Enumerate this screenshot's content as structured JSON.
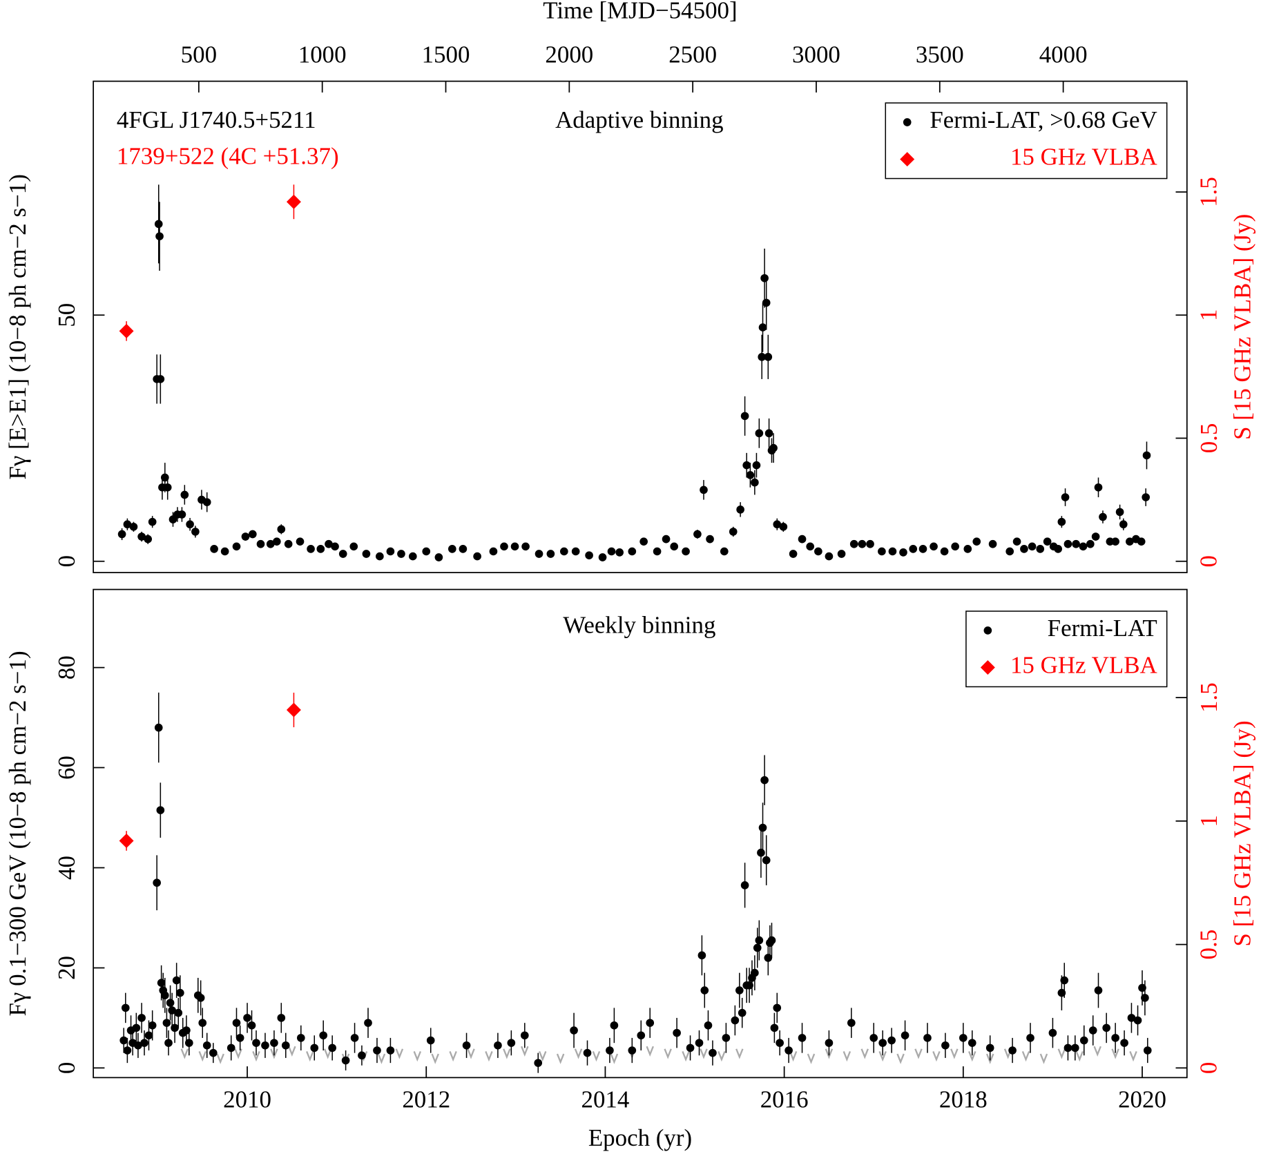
{
  "chart_data": [
    {
      "type": "scatter",
      "annotations": [
        {
          "text": "4FGL J1740.5+5211",
          "color": "#000000"
        },
        {
          "text": "1739+522 (4C +51.37)",
          "color": "#ff0000"
        },
        {
          "text": "Adaptive binning",
          "color": "#000000"
        }
      ],
      "x2_label": "Time [MJD−54500]",
      "y_label": "Fγ [E>E1] (10−8 ph cm−2 s−1)",
      "y2_label": "S [15 GHz VLBA] (Jy)",
      "xlim": [
        2008.28,
        2020.5
      ],
      "x2lim": [
        73,
        4501
      ],
      "x2ticks": [
        500,
        1000,
        1500,
        2000,
        2500,
        3000,
        3500,
        4000
      ],
      "ylim": [
        -2.3,
        97.5
      ],
      "yticks": [
        0,
        50
      ],
      "y2lim": [
        -0.046,
        1.95
      ],
      "y2ticks": [
        0,
        0.5,
        1,
        1.5
      ],
      "legend": "upper right",
      "series": [
        {
          "name": "Fermi-LAT, >0.68 GeV",
          "color": "#000000",
          "marker": "circle",
          "x": [
            2008.6,
            2008.66,
            2008.73,
            2008.82,
            2008.89,
            2008.94,
            2008.99,
            2009.01,
            2009.02,
            2009.03,
            2009.05,
            2009.08,
            2009.11,
            2009.17,
            2009.22,
            2009.27,
            2009.3,
            2009.36,
            2009.42,
            2009.49,
            2009.55,
            2009.63,
            2009.75,
            2009.88,
            2009.98,
            2010.06,
            2010.15,
            2010.26,
            2010.33,
            2010.38,
            2010.46,
            2010.59,
            2010.71,
            2010.82,
            2010.91,
            2010.98,
            2011.07,
            2011.19,
            2011.33,
            2011.48,
            2011.6,
            2011.72,
            2011.85,
            2012.0,
            2012.14,
            2012.29,
            2012.41,
            2012.57,
            2012.75,
            2012.87,
            2012.99,
            2013.11,
            2013.26,
            2013.39,
            2013.54,
            2013.67,
            2013.82,
            2013.97,
            2014.07,
            2014.16,
            2014.3,
            2014.43,
            2014.58,
            2014.68,
            2014.77,
            2014.9,
            2015.03,
            2015.1,
            2015.17,
            2015.33,
            2015.43,
            2015.51,
            2015.56,
            2015.58,
            2015.62,
            2015.67,
            2015.69,
            2015.72,
            2015.75,
            2015.76,
            2015.78,
            2015.8,
            2015.82,
            2015.83,
            2015.86,
            2015.88,
            2015.92,
            2015.99,
            2016.1,
            2016.2,
            2016.29,
            2016.38,
            2016.5,
            2016.64,
            2016.78,
            2016.87,
            2016.96,
            2017.09,
            2017.21,
            2017.33,
            2017.44,
            2017.55,
            2017.67,
            2017.79,
            2017.91,
            2018.05,
            2018.15,
            2018.33,
            2018.52,
            2018.6,
            2018.68,
            2018.77,
            2018.86,
            2018.94,
            2019.01,
            2019.06,
            2019.1,
            2019.14,
            2019.17,
            2019.26,
            2019.34,
            2019.42,
            2019.48,
            2019.51,
            2019.56,
            2019.64,
            2019.7,
            2019.75,
            2019.79,
            2019.86,
            2019.93,
            2019.99,
            2020.04,
            2020.05
          ],
          "values": [
            5.5,
            7.5,
            7,
            5,
            4.5,
            8,
            37,
            68.5,
            66,
            37,
            15,
            17,
            15,
            8.5,
            9.5,
            9.5,
            13.5,
            7.5,
            6,
            12.5,
            12,
            2.5,
            2,
            3,
            5,
            5.5,
            3.5,
            3.5,
            4,
            6.5,
            3.5,
            4,
            2.5,
            2.5,
            3.5,
            3,
            1.5,
            3,
            1.5,
            1,
            2,
            1.5,
            1,
            2,
            0.8,
            2.5,
            2.5,
            1,
            2,
            3,
            3,
            3,
            1.5,
            1.5,
            2,
            2,
            1.2,
            0.8,
            2,
            1.8,
            2,
            4,
            2,
            4.5,
            3,
            2,
            5.5,
            14.5,
            4.5,
            2,
            6,
            10.5,
            29.5,
            19.5,
            17.5,
            16,
            19.5,
            26,
            41.5,
            47.5,
            57.5,
            52.5,
            41.5,
            26,
            22.5,
            23,
            7.5,
            7,
            1.5,
            4.5,
            3,
            2,
            1,
            1.5,
            3.5,
            3.5,
            3.5,
            2,
            2,
            1.8,
            2.5,
            2.5,
            3,
            2,
            3,
            2.5,
            4,
            3.5,
            2,
            4,
            2.5,
            3,
            2.5,
            4,
            3,
            2.5,
            8,
            13,
            3.5,
            3.5,
            3,
            3.5,
            5,
            15,
            9,
            4,
            4,
            10,
            7.5,
            4,
            4.5,
            4,
            13,
            21.5
          ],
          "errors": [
            1.2,
            1.2,
            1,
            1,
            1,
            1.2,
            5,
            8,
            7,
            5,
            2.5,
            3,
            2.5,
            1.5,
            1.5,
            1.5,
            2,
            1.3,
            1.2,
            2,
            2,
            0.6,
            0.5,
            0.6,
            0.8,
            0.8,
            0.7,
            0.7,
            0.8,
            1,
            0.7,
            0.7,
            0.6,
            0.6,
            0.7,
            0.6,
            0.5,
            0.6,
            0.5,
            0.4,
            0.5,
            0.5,
            0.4,
            0.5,
            0.4,
            0.6,
            0.6,
            0.4,
            0.5,
            0.6,
            0.6,
            0.6,
            0.5,
            0.5,
            0.5,
            0.5,
            0.4,
            0.4,
            0.5,
            0.5,
            0.5,
            0.7,
            0.5,
            0.8,
            0.6,
            0.5,
            0.9,
            2,
            0.8,
            0.6,
            1,
            1.5,
            4,
            2.5,
            2.5,
            2.5,
            2.5,
            3,
            4.5,
            5,
            6,
            5.5,
            4.5,
            3,
            2.5,
            3,
            1.2,
            1,
            0.5,
            0.8,
            0.6,
            0.5,
            0.4,
            0.5,
            0.7,
            0.7,
            0.7,
            0.5,
            0.5,
            0.5,
            0.6,
            0.6,
            0.6,
            0.5,
            0.6,
            0.6,
            0.7,
            0.7,
            0.5,
            0.7,
            0.6,
            0.6,
            0.6,
            0.7,
            0.6,
            0.6,
            1.2,
            1.8,
            0.7,
            0.7,
            0.6,
            0.7,
            0.8,
            2,
            1.3,
            0.7,
            0.7,
            1.5,
            1.2,
            0.7,
            0.8,
            0.7,
            1.8,
            2.8
          ]
        },
        {
          "name": "15 GHz VLBA",
          "color": "#ff0000",
          "marker": "diamond",
          "axis": "y2",
          "x": [
            2008.65,
            2010.52
          ],
          "values": [
            0.935,
            1.46
          ],
          "errors": [
            0.04,
            0.07
          ]
        }
      ]
    },
    {
      "type": "scatter",
      "annotations": [
        {
          "text": "Weekly binning",
          "color": "#000000"
        }
      ],
      "x_label": "Epoch (yr)",
      "y_label": "Fγ 0.1−300 GeV (10−8 ph cm−2 s−1)",
      "y2_label": "S [15 GHz VLBA] (Jy)",
      "xlim": [
        2008.28,
        2020.5
      ],
      "xticks": [
        2010,
        2012,
        2014,
        2016,
        2018,
        2020
      ],
      "ylim": [
        -1.93,
        95.6
      ],
      "yticks": [
        0,
        20,
        40,
        60,
        80
      ],
      "y2lim": [
        -0.039,
        1.938
      ],
      "y2ticks": [
        0,
        0.5,
        1,
        1.5
      ],
      "legend": "upper right",
      "series": [
        {
          "name": "Fermi-LAT",
          "color": "#000000",
          "marker": "circle",
          "x": [
            2008.62,
            2008.64,
            2008.66,
            2008.7,
            2008.72,
            2008.76,
            2008.78,
            2008.82,
            2008.85,
            2008.9,
            2008.94,
            2008.99,
            2009.01,
            2009.03,
            2009.04,
            2009.06,
            2009.08,
            2009.1,
            2009.12,
            2009.14,
            2009.16,
            2009.19,
            2009.21,
            2009.23,
            2009.25,
            2009.28,
            2009.32,
            2009.35,
            2009.45,
            2009.48,
            2009.5,
            2009.55,
            2009.62,
            2009.82,
            2009.88,
            2009.92,
            2010.0,
            2010.05,
            2010.1,
            2010.2,
            2010.3,
            2010.38,
            2010.43,
            2010.6,
            2010.75,
            2010.85,
            2010.95,
            2011.1,
            2011.2,
            2011.28,
            2011.35,
            2011.45,
            2011.6,
            2012.05,
            2012.45,
            2012.8,
            2012.95,
            2013.1,
            2013.25,
            2013.65,
            2013.8,
            2014.05,
            2014.1,
            2014.3,
            2014.4,
            2014.5,
            2014.8,
            2014.95,
            2015.05,
            2015.08,
            2015.11,
            2015.15,
            2015.2,
            2015.35,
            2015.45,
            2015.5,
            2015.53,
            2015.56,
            2015.58,
            2015.61,
            2015.64,
            2015.67,
            2015.7,
            2015.72,
            2015.74,
            2015.76,
            2015.78,
            2015.8,
            2015.82,
            2015.84,
            2015.86,
            2015.89,
            2015.92,
            2015.95,
            2016.05,
            2016.2,
            2016.5,
            2016.75,
            2017.0,
            2017.1,
            2017.2,
            2017.35,
            2017.6,
            2017.8,
            2018.0,
            2018.1,
            2018.3,
            2018.55,
            2018.75,
            2019.0,
            2019.1,
            2019.13,
            2019.17,
            2019.25,
            2019.35,
            2019.45,
            2019.51,
            2019.6,
            2019.7,
            2019.8,
            2019.88,
            2019.95,
            2020.0,
            2020.03,
            2020.06
          ],
          "values": [
            5.5,
            12,
            3.5,
            7.5,
            5,
            8,
            4.5,
            10,
            5,
            6.5,
            8.5,
            37,
            68,
            51.5,
            17,
            15.5,
            14.5,
            9,
            5,
            13,
            11.5,
            8,
            17.5,
            11,
            15,
            7,
            7.5,
            5,
            14.5,
            14,
            9,
            4.5,
            3,
            4,
            9,
            6,
            10,
            8.5,
            5,
            4.5,
            5,
            10,
            4.5,
            6,
            4,
            6.5,
            4,
            1.5,
            6,
            2.5,
            9,
            3.5,
            3.5,
            5.5,
            4.5,
            4.5,
            5,
            6.5,
            1,
            7.5,
            3,
            3.5,
            8.5,
            3.5,
            6.5,
            9,
            7,
            4,
            5,
            22.5,
            15.5,
            8.5,
            3,
            6,
            9.5,
            15.5,
            11,
            36.5,
            16.5,
            16.5,
            18,
            19,
            24,
            25.5,
            43,
            48,
            57.5,
            41.5,
            22,
            25,
            25.5,
            8,
            12,
            5,
            3.5,
            6,
            5,
            9,
            6,
            5,
            5.5,
            6.5,
            6,
            4.5,
            6,
            5,
            4,
            3.5,
            6,
            7,
            15,
            17.5,
            4,
            4,
            5.5,
            7.5,
            15.5,
            8,
            6,
            5,
            10,
            9.5,
            16,
            14,
            3.5
          ],
          "errors": [
            2.5,
            3,
            2.5,
            3,
            2.5,
            3,
            2.5,
            3,
            2.5,
            3,
            3,
            5.5,
            7,
            5.5,
            3.5,
            3.5,
            3.5,
            3,
            2.5,
            3.5,
            3.5,
            3,
            3.5,
            3,
            3.5,
            3,
            3,
            2.5,
            3.5,
            3.5,
            3,
            2.5,
            2,
            2.5,
            3,
            2.5,
            3,
            3,
            2.5,
            2.5,
            2.5,
            3,
            2.5,
            2.5,
            2.5,
            3,
            2.5,
            2,
            3,
            2,
            3,
            2.5,
            2.5,
            2.5,
            2.5,
            2.5,
            2.5,
            2.5,
            2,
            3.5,
            2.5,
            2.5,
            3.5,
            2.5,
            3,
            3,
            3,
            2.5,
            2.5,
            4,
            3.5,
            3,
            2.5,
            3,
            3,
            3.5,
            3,
            4.5,
            3.5,
            3.5,
            3.5,
            3.5,
            4,
            4,
            5,
            5,
            5,
            5,
            3.5,
            3.5,
            3.5,
            3,
            3,
            2.5,
            2.5,
            3,
            2.5,
            3,
            3,
            2.5,
            2.5,
            3,
            3,
            2.5,
            3,
            2.5,
            2.5,
            2.5,
            3,
            3,
            3.5,
            3.5,
            2.5,
            2.5,
            3,
            3,
            3.5,
            3,
            3,
            2.5,
            3,
            3,
            3.5,
            3.5,
            2.5
          ]
        },
        {
          "name": "15 GHz VLBA",
          "color": "#ff0000",
          "marker": "diamond",
          "axis": "y2",
          "x": [
            2008.65,
            2010.52
          ],
          "values": [
            0.92,
            1.45
          ],
          "errors": [
            0.04,
            0.07
          ]
        }
      ],
      "upper_limits": {
        "color": "#aaaaaa",
        "x": [
          2009.3,
          2009.5,
          2009.7,
          2009.9,
          2010.1,
          2010.3,
          2010.5,
          2010.7,
          2010.9,
          2011.1,
          2011.3,
          2011.5,
          2011.7,
          2011.9,
          2012.1,
          2012.3,
          2012.5,
          2012.7,
          2012.9,
          2013.1,
          2013.3,
          2013.5,
          2013.7,
          2013.9,
          2014.1,
          2014.3,
          2014.5,
          2014.7,
          2014.9,
          2015.1,
          2015.3,
          2015.5,
          2016.1,
          2016.3,
          2016.5,
          2016.7,
          2016.9,
          2017.1,
          2017.3,
          2017.5,
          2017.7,
          2017.9,
          2018.1,
          2018.3,
          2018.5,
          2018.7,
          2018.9,
          2019.1,
          2019.3,
          2019.5,
          2019.7,
          2019.9
        ],
        "values": [
          3,
          2.5,
          2,
          3,
          2.5,
          3,
          3.5,
          2.5,
          3,
          2,
          2.5,
          2,
          3,
          2.5,
          2,
          2.5,
          3,
          2.5,
          3,
          3.5,
          2.5,
          2,
          3,
          2.5,
          2,
          3,
          3.5,
          3,
          2.5,
          3,
          2.5,
          3,
          2.5,
          2,
          3,
          2.5,
          3,
          2.5,
          2,
          3,
          2.5,
          3,
          2.5,
          2,
          3,
          2.5,
          2,
          3,
          2.5,
          3.5,
          3,
          2.5
        ]
      }
    }
  ]
}
